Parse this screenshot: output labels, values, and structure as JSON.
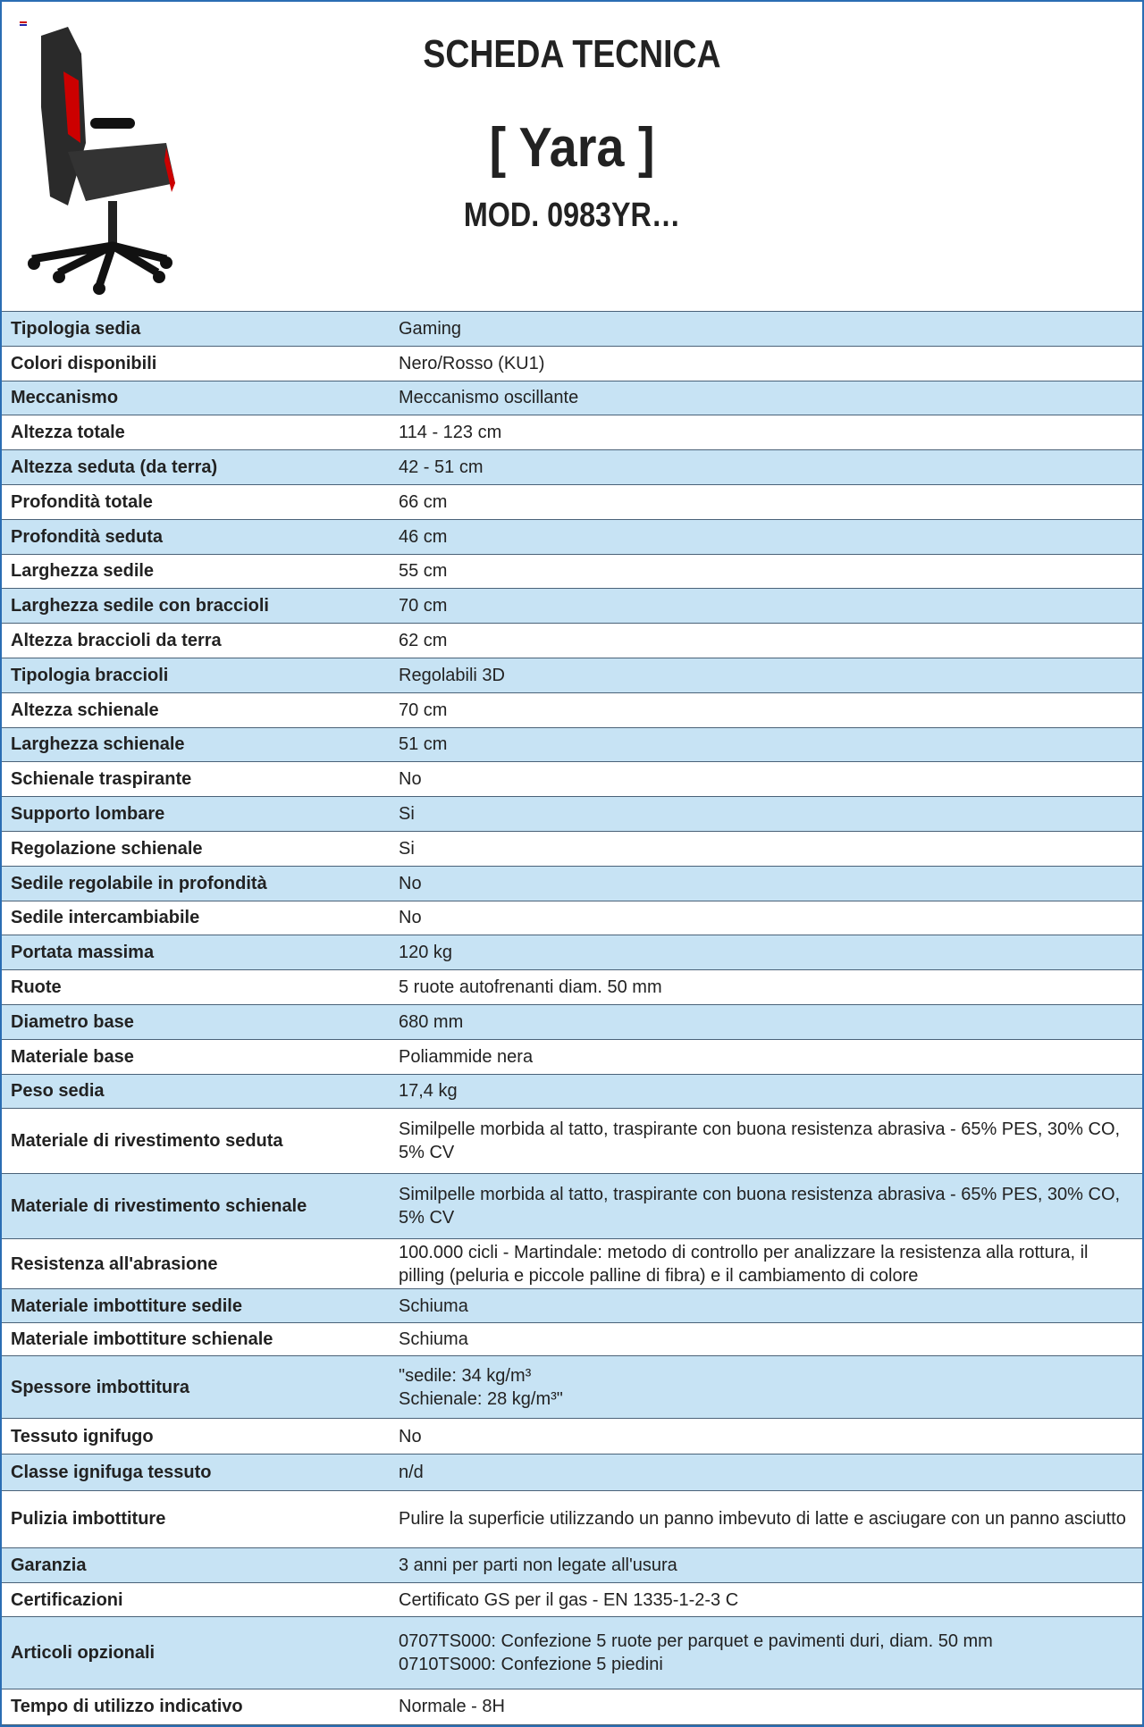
{
  "header": {
    "title": "SCHEDA TECNICA",
    "name": "[ Yara ]",
    "model": "MOD. 0983YR…"
  },
  "table": {
    "rows": [
      [
        "Tipologia sedia",
        "Gaming"
      ],
      [
        "Colori disponibili",
        "Nero/Rosso (KU1)"
      ],
      [
        "Meccanismo",
        "Meccanismo oscillante"
      ],
      [
        "Altezza totale",
        "114 - 123 cm"
      ],
      [
        "Altezza seduta (da terra)",
        "42 - 51 cm"
      ],
      [
        "Profondità totale",
        "66 cm"
      ],
      [
        "Profondità seduta",
        "46 cm"
      ],
      [
        "Larghezza sedile",
        "55 cm"
      ],
      [
        "Larghezza sedile con braccioli",
        "70 cm"
      ],
      [
        "Altezza braccioli da terra",
        "62 cm"
      ],
      [
        "Tipologia braccioli",
        "Regolabili 3D"
      ],
      [
        "Altezza schienale",
        "70 cm"
      ],
      [
        "Larghezza schienale",
        "51 cm"
      ],
      [
        "Schienale traspirante",
        "No"
      ],
      [
        "Supporto lombare",
        "Si"
      ],
      [
        "Regolazione schienale",
        "Si"
      ],
      [
        "Sedile regolabile in profondità",
        "No"
      ],
      [
        "Sedile intercambiabile",
        "No"
      ],
      [
        "Portata massima",
        "120 kg"
      ],
      [
        "Ruote",
        "5 ruote autofrenanti diam. 50 mm"
      ],
      [
        "Diametro base",
        "680 mm"
      ],
      [
        "Materiale base",
        "Poliammide nera"
      ],
      [
        "Peso sedia",
        "17,4 kg"
      ],
      [
        "Materiale di rivestimento seduta",
        "Similpelle morbida al tatto, traspirante con buona resistenza abrasiva - 65% PES, 30% CO, 5% CV"
      ],
      [
        "Materiale di rivestimento schienale",
        "Similpelle morbida al tatto, traspirante con buona resistenza abrasiva - 65% PES, 30% CO, 5% CV"
      ],
      [
        "Resistenza all'abrasione",
        "100.000 cicli - Martindale: metodo di controllo per analizzare la resistenza alla rottura, il pilling (peluria e piccole palline di fibra) e il cambiamento di colore"
      ],
      [
        "Materiale imbottiture sedile",
        "Schiuma"
      ],
      [
        "Materiale imbottiture schienale",
        "Schiuma"
      ],
      [
        "Spessore imbottitura",
        "\"sedile: 34 kg/m³\nSchienale: 28 kg/m³\""
      ],
      [
        "Tessuto ignifugo",
        "No"
      ],
      [
        "Classe ignifuga tessuto",
        "n/d"
      ],
      [
        "Pulizia imbottiture",
        "Pulire la superficie utilizzando un panno imbevuto di latte e asciugare con un panno asciutto"
      ],
      [
        "Garanzia",
        "3 anni per parti non legate all'usura"
      ],
      [
        "Certificazioni",
        "Certificato GS per il gas - EN 1335-1-2-3 C"
      ],
      [
        "Articoli opzionali",
        "0707TS000: Confezione 5 ruote per parquet e pavimenti duri, diam. 50 mm\n0710TS000: Confezione 5 piedini"
      ],
      [
        "Tempo di utilizzo indicativo",
        "Normale - 8H"
      ]
    ]
  }
}
